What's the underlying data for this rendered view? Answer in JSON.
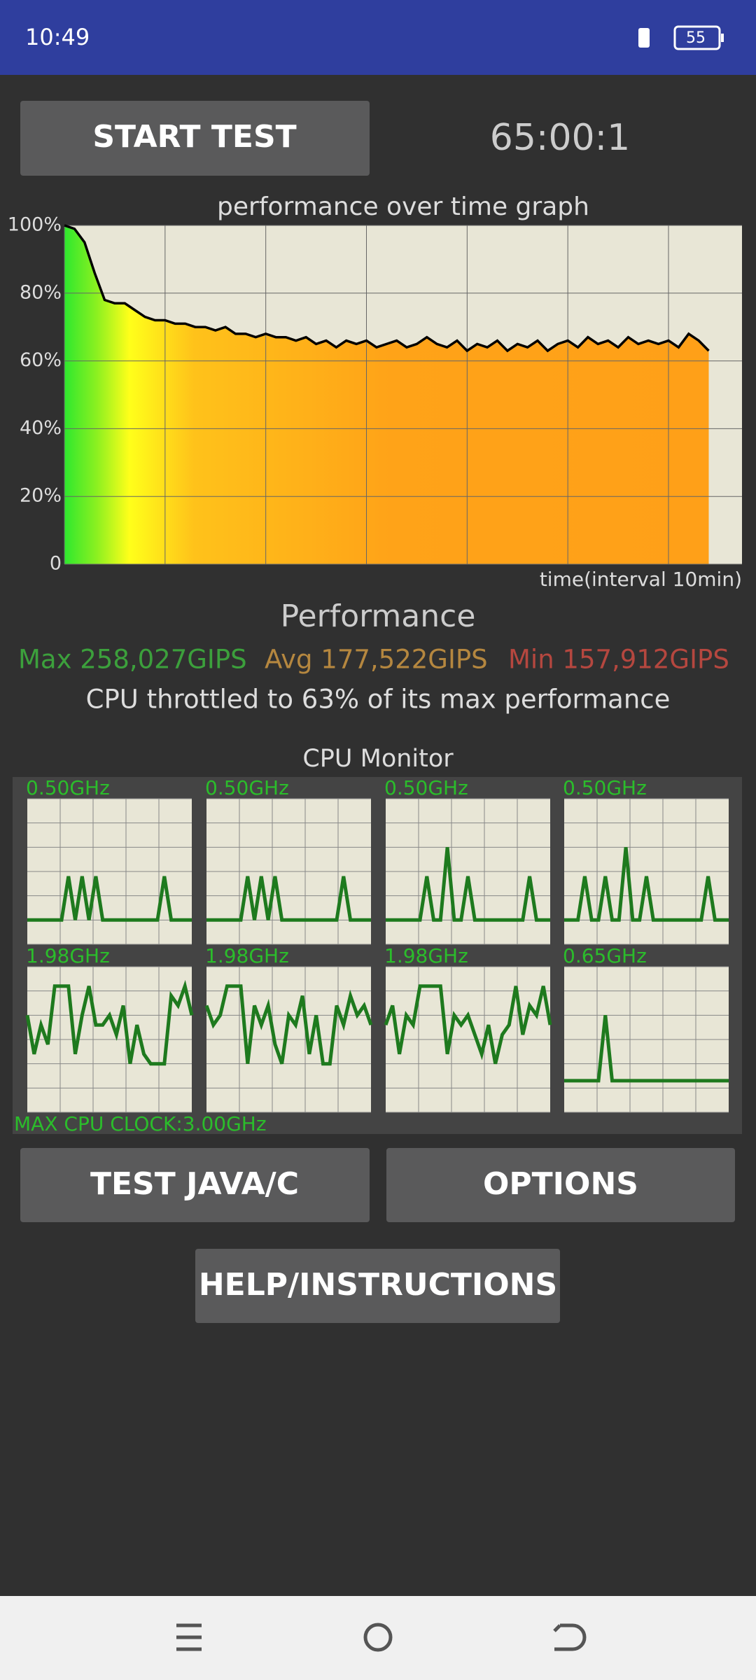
{
  "status_bar": {
    "time": "10:49",
    "battery": "55"
  },
  "buttons": {
    "start_test": "START TEST",
    "test_java_c": "TEST JAVA/C",
    "options": "OPTIONS",
    "help": "HELP/INSTRUCTIONS"
  },
  "timer": "65:00:1",
  "chart_data": {
    "type": "line",
    "title": "performance over time graph",
    "x_label": "time(interval 10min)",
    "xlim": [
      0,
      67.3
    ],
    "xticks": [
      0,
      10,
      20,
      30,
      40,
      50,
      60
    ],
    "ylim": [
      0,
      100
    ],
    "yticks": [
      0,
      {
        "value": 20,
        "label": "20%"
      },
      {
        "value": 40,
        "label": "40%"
      },
      {
        "value": 60,
        "label": "60%"
      },
      {
        "value": 80,
        "label": "80%"
      },
      {
        "value": 100,
        "label": "100%"
      }
    ],
    "grid": true,
    "color": "#000000",
    "x": [
      0,
      1,
      2,
      3,
      4,
      5,
      6,
      7,
      8,
      9,
      10,
      11,
      12,
      13,
      14,
      15,
      16,
      17,
      18,
      19,
      20,
      21,
      22,
      23,
      24,
      25,
      26,
      27,
      28,
      29,
      30,
      31,
      32,
      33,
      34,
      35,
      36,
      37,
      38,
      39,
      40,
      41,
      42,
      43,
      44,
      45,
      46,
      47,
      48,
      49,
      50,
      51,
      52,
      53,
      54,
      55,
      56,
      57,
      58,
      59,
      60,
      61,
      62,
      63,
      64
    ],
    "values": [
      100,
      99,
      95,
      86,
      78,
      77,
      77,
      75,
      73,
      72,
      72,
      71,
      71,
      70,
      70,
      69,
      70,
      68,
      68,
      67,
      68,
      67,
      67,
      66,
      67,
      65,
      66,
      64,
      66,
      65,
      66,
      64,
      65,
      66,
      64,
      65,
      67,
      65,
      64,
      66,
      63,
      65,
      64,
      66,
      63,
      65,
      64,
      66,
      63,
      65,
      66,
      64,
      67,
      65,
      66,
      64,
      67,
      65,
      66,
      65,
      66,
      64,
      68,
      66,
      63
    ]
  },
  "performance": {
    "title": "Performance",
    "max": "Max 258,027GIPS",
    "avg": "Avg 177,522GIPS",
    "min": "Min 157,912GIPS",
    "throttle": "CPU throttled to 63% of its max performance"
  },
  "cpu_monitor": {
    "title": "CPU Monitor",
    "max_clock": "MAX CPU CLOCK:3.00GHz",
    "ylim": [
      0,
      3
    ],
    "yticks": [
      0,
      0.5,
      1,
      1.5,
      2,
      2.5,
      3
    ],
    "cores": [
      {
        "label": "0.50GHz",
        "values": [
          0.5,
          0.5,
          0.5,
          0.5,
          0.5,
          0.5,
          1.4,
          0.5,
          1.4,
          0.5,
          1.4,
          0.5,
          0.5,
          0.5,
          0.5,
          0.5,
          0.5,
          0.5,
          0.5,
          0.5,
          1.4,
          0.5,
          0.5,
          0.5,
          0.5
        ]
      },
      {
        "label": "0.50GHz",
        "values": [
          0.5,
          0.5,
          0.5,
          0.5,
          0.5,
          0.5,
          1.4,
          0.5,
          1.4,
          0.5,
          1.4,
          0.5,
          0.5,
          0.5,
          0.5,
          0.5,
          0.5,
          0.5,
          0.5,
          0.5,
          1.4,
          0.5,
          0.5,
          0.5,
          0.5
        ]
      },
      {
        "label": "0.50GHz",
        "values": [
          0.5,
          0.5,
          0.5,
          0.5,
          0.5,
          0.5,
          1.4,
          0.5,
          0.5,
          2.0,
          0.5,
          0.5,
          1.4,
          0.5,
          0.5,
          0.5,
          0.5,
          0.5,
          0.5,
          0.5,
          0.5,
          1.4,
          0.5,
          0.5,
          0.5
        ]
      },
      {
        "label": "0.50GHz",
        "values": [
          0.5,
          0.5,
          0.5,
          1.4,
          0.5,
          0.5,
          1.4,
          0.5,
          0.5,
          2.0,
          0.5,
          0.5,
          1.4,
          0.5,
          0.5,
          0.5,
          0.5,
          0.5,
          0.5,
          0.5,
          0.5,
          1.4,
          0.5,
          0.5,
          0.5
        ]
      },
      {
        "label": "1.98GHz",
        "values": [
          2.0,
          1.2,
          1.8,
          1.4,
          2.6,
          2.6,
          2.6,
          1.2,
          2.0,
          2.6,
          1.8,
          1.8,
          2.0,
          1.6,
          2.2,
          1.0,
          1.8,
          1.2,
          1.0,
          1.0,
          1.0,
          2.4,
          2.2,
          2.6,
          2.0
        ]
      },
      {
        "label": "1.98GHz",
        "values": [
          2.2,
          1.8,
          2.0,
          2.6,
          2.6,
          2.6,
          1.0,
          2.2,
          1.8,
          2.2,
          1.4,
          1.0,
          2.0,
          1.8,
          2.4,
          1.2,
          2.0,
          1.0,
          1.0,
          2.2,
          1.8,
          2.4,
          2.0,
          2.2,
          1.8
        ]
      },
      {
        "label": "1.98GHz",
        "values": [
          1.8,
          2.2,
          1.2,
          2.0,
          1.8,
          2.6,
          2.6,
          2.6,
          2.6,
          1.2,
          2.0,
          1.8,
          2.0,
          1.6,
          1.2,
          1.8,
          1.0,
          1.6,
          1.8,
          2.6,
          1.6,
          2.2,
          2.0,
          2.6,
          1.8
        ]
      },
      {
        "label": "0.65GHz",
        "values": [
          0.65,
          0.65,
          0.65,
          0.65,
          0.65,
          0.65,
          2.0,
          0.65,
          0.65,
          0.65,
          0.65,
          0.65,
          0.65,
          0.65,
          0.65,
          0.65,
          0.65,
          0.65,
          0.65,
          0.65,
          0.65,
          0.65,
          0.65,
          0.65,
          0.65
        ]
      }
    ]
  }
}
